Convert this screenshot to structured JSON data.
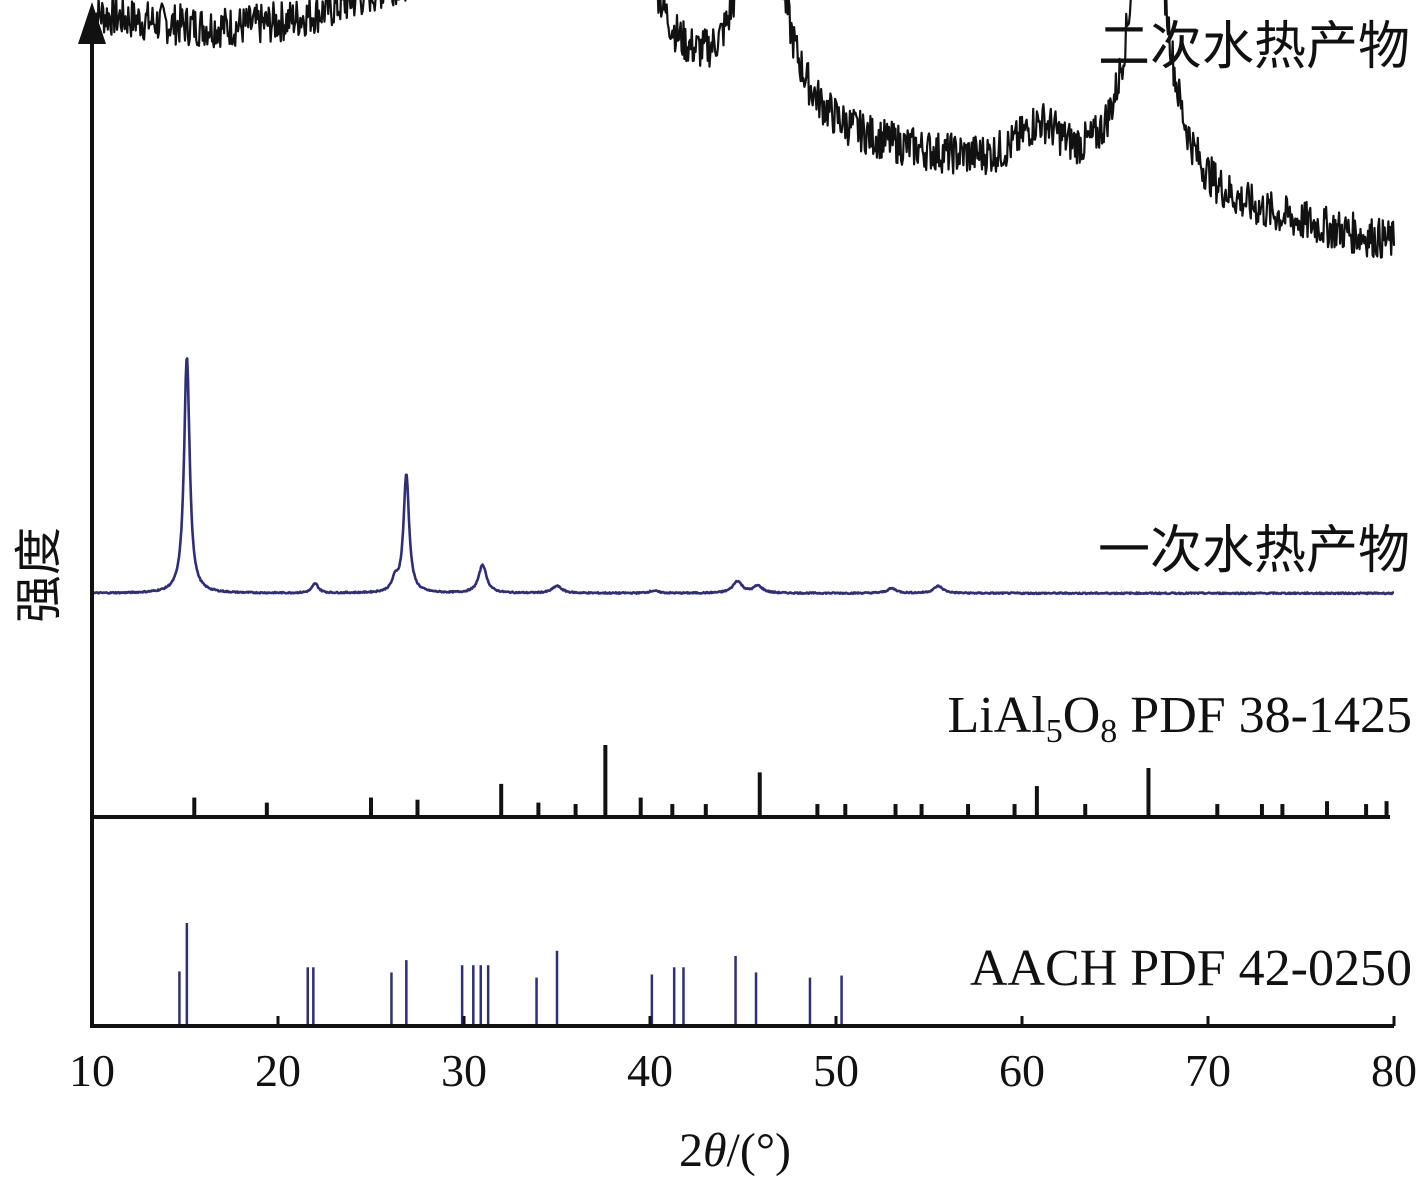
{
  "chart_data": {
    "type": "line",
    "xlabel": "2θ/(°)",
    "ylabel": "强度",
    "xlim": [
      10,
      80
    ],
    "x_ticks": [
      "10",
      "20",
      "30",
      "40",
      "50",
      "60",
      "70",
      "80"
    ],
    "y_ticks_shown": false,
    "grid": false,
    "legend": "none (series labelled directly above each trace, right-aligned)",
    "colors": {
      "secondary_product": "#111111",
      "primary_product": "#2e2e7a",
      "reference_lialo": "#111111",
      "reference_aach": "#2e2e7a",
      "axis": "#111111"
    },
    "series": [
      {
        "key": "secondary_product",
        "name": "二次水热产物",
        "kind": "xrd-pattern",
        "baseline_at_x10": 0.62,
        "baseline_at_x80": 0.12,
        "broad_hump": {
          "center": 31,
          "height": 0.22,
          "width": 9
        },
        "peaks": [
          {
            "x": 32.0,
            "height": 0.1,
            "width": 1.2
          },
          {
            "x": 37.5,
            "height": 0.62,
            "width": 1.3
          },
          {
            "x": 39.5,
            "height": 0.12,
            "width": 1.0
          },
          {
            "x": 46.0,
            "height": 0.58,
            "width": 1.2
          },
          {
            "x": 61.0,
            "height": 0.1,
            "width": 1.5
          },
          {
            "x": 66.8,
            "height": 0.75,
            "width": 1.1
          }
        ]
      },
      {
        "key": "primary_product",
        "name": "一次水热产物",
        "kind": "xrd-pattern",
        "baseline": 0.02,
        "peaks": [
          {
            "x": 15.1,
            "height": 1.0,
            "width": 0.18
          },
          {
            "x": 22.0,
            "height": 0.04,
            "width": 0.2
          },
          {
            "x": 26.3,
            "height": 0.05,
            "width": 0.2
          },
          {
            "x": 26.9,
            "height": 0.5,
            "width": 0.18
          },
          {
            "x": 31.0,
            "height": 0.12,
            "width": 0.25
          },
          {
            "x": 35.0,
            "height": 0.03,
            "width": 0.3
          },
          {
            "x": 40.2,
            "height": 0.01,
            "width": 0.3
          },
          {
            "x": 44.7,
            "height": 0.05,
            "width": 0.3
          },
          {
            "x": 45.8,
            "height": 0.03,
            "width": 0.3
          },
          {
            "x": 53.0,
            "height": 0.02,
            "width": 0.3
          },
          {
            "x": 55.5,
            "height": 0.03,
            "width": 0.3
          }
        ]
      },
      {
        "key": "reference_lialo",
        "name": "LiAl₅O₈ PDF 38-1425",
        "name_main_1": "LiAl",
        "name_sub_1": "5",
        "name_main_2": "O",
        "name_sub_2": "8",
        "name_rest": " PDF 38-1425",
        "kind": "stick-pattern",
        "sticks": [
          {
            "x": 15.5,
            "h": 0.27
          },
          {
            "x": 19.4,
            "h": 0.2
          },
          {
            "x": 25.0,
            "h": 0.27
          },
          {
            "x": 27.5,
            "h": 0.24
          },
          {
            "x": 32.0,
            "h": 0.46
          },
          {
            "x": 34.0,
            "h": 0.2
          },
          {
            "x": 36.0,
            "h": 0.18
          },
          {
            "x": 37.6,
            "h": 1.0
          },
          {
            "x": 39.5,
            "h": 0.27
          },
          {
            "x": 41.2,
            "h": 0.18
          },
          {
            "x": 43.0,
            "h": 0.18
          },
          {
            "x": 45.9,
            "h": 0.62
          },
          {
            "x": 49.0,
            "h": 0.18
          },
          {
            "x": 50.5,
            "h": 0.18
          },
          {
            "x": 53.2,
            "h": 0.18
          },
          {
            "x": 54.6,
            "h": 0.18
          },
          {
            "x": 57.1,
            "h": 0.18
          },
          {
            "x": 59.6,
            "h": 0.18
          },
          {
            "x": 60.8,
            "h": 0.43
          },
          {
            "x": 63.4,
            "h": 0.18
          },
          {
            "x": 66.8,
            "h": 0.68
          },
          {
            "x": 70.5,
            "h": 0.18
          },
          {
            "x": 72.9,
            "h": 0.18
          },
          {
            "x": 74.0,
            "h": 0.18
          },
          {
            "x": 76.4,
            "h": 0.22
          },
          {
            "x": 78.5,
            "h": 0.18
          },
          {
            "x": 79.6,
            "h": 0.22
          }
        ]
      },
      {
        "key": "reference_aach",
        "name": "AACH PDF 42-0250",
        "kind": "stick-pattern",
        "sticks": [
          {
            "x": 14.7,
            "h": 0.53
          },
          {
            "x": 15.1,
            "h": 1.0
          },
          {
            "x": 21.6,
            "h": 0.57
          },
          {
            "x": 21.9,
            "h": 0.57
          },
          {
            "x": 26.1,
            "h": 0.52
          },
          {
            "x": 26.9,
            "h": 0.64
          },
          {
            "x": 29.9,
            "h": 0.59
          },
          {
            "x": 30.5,
            "h": 0.59
          },
          {
            "x": 30.9,
            "h": 0.59
          },
          {
            "x": 31.3,
            "h": 0.59
          },
          {
            "x": 33.9,
            "h": 0.47
          },
          {
            "x": 35.0,
            "h": 0.73
          },
          {
            "x": 40.1,
            "h": 0.5
          },
          {
            "x": 41.3,
            "h": 0.57
          },
          {
            "x": 41.8,
            "h": 0.57
          },
          {
            "x": 44.6,
            "h": 0.68
          },
          {
            "x": 45.7,
            "h": 0.52
          },
          {
            "x": 48.6,
            "h": 0.47
          },
          {
            "x": 50.3,
            "h": 0.49
          }
        ]
      }
    ]
  }
}
